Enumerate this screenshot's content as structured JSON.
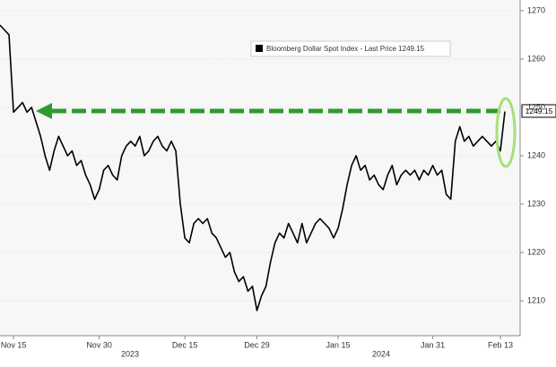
{
  "chart_data": {
    "type": "line",
    "legend_text": "Bloomberg Dollar Spot Index - Last Price 1249.15",
    "year_labels": [
      "2023",
      "2024"
    ],
    "categories": [
      null,
      null,
      null,
      "Nov 15",
      null,
      null,
      null,
      null,
      null,
      null,
      null,
      null,
      null,
      null,
      null,
      null,
      null,
      null,
      null,
      null,
      null,
      null,
      "Nov 30",
      null,
      null,
      null,
      null,
      null,
      null,
      null,
      null,
      null,
      null,
      null,
      null,
      null,
      null,
      null,
      null,
      null,
      null,
      "Dec 15",
      null,
      null,
      null,
      null,
      null,
      null,
      null,
      null,
      null,
      null,
      null,
      null,
      null,
      null,
      null,
      "Dec 29",
      null,
      null,
      null,
      null,
      null,
      null,
      null,
      null,
      null,
      null,
      null,
      null,
      null,
      null,
      null,
      null,
      null,
      "Jan 15",
      null,
      null,
      null,
      null,
      null,
      null,
      null,
      null,
      null,
      null,
      null,
      null,
      null,
      null,
      null,
      null,
      null,
      null,
      null,
      null,
      "Jan 31",
      null,
      null,
      null,
      null,
      null,
      null,
      null,
      null,
      null,
      null,
      null,
      null,
      null,
      null,
      "Feb 13",
      null
    ],
    "series": [
      {
        "name": "Bloomberg Dollar Spot Index",
        "color": "#000000",
        "values": [
          1267,
          1266,
          1265,
          1249,
          1250,
          1251,
          1249,
          1250,
          1247,
          1244,
          1240,
          1237,
          1241,
          1244,
          1242,
          1240,
          1241,
          1238,
          1239,
          1236,
          1234,
          1231,
          1233,
          1237,
          1238,
          1236,
          1235,
          1240,
          1242,
          1243,
          1242,
          1244,
          1240,
          1241,
          1243,
          1244,
          1242,
          1241,
          1243,
          1241,
          1230,
          1223,
          1222,
          1226,
          1227,
          1226,
          1227,
          1224,
          1223,
          1221,
          1219,
          1220,
          1216,
          1214,
          1215,
          1212,
          1213,
          1208,
          1211,
          1213,
          1218,
          1222,
          1224,
          1223,
          1226,
          1224,
          1222,
          1226,
          1222,
          1224,
          1226,
          1227,
          1226,
          1225,
          1223,
          1225,
          1229,
          1234,
          1238,
          1240,
          1237,
          1238,
          1235,
          1236,
          1234,
          1233,
          1236,
          1238,
          1234,
          1236,
          1237,
          1236,
          1237,
          1235,
          1237,
          1236,
          1238,
          1236,
          1237,
          1232,
          1231,
          1243,
          1246,
          1243,
          1244,
          1242,
          1243,
          1244,
          1243,
          1242,
          1243,
          1241,
          1249.15
        ]
      }
    ],
    "ylim": [
      1202.8,
      1272.2
    ],
    "yticks": [
      1210,
      1220,
      1230,
      1240,
      1250,
      1260,
      1270
    ],
    "grid": true
  }
}
